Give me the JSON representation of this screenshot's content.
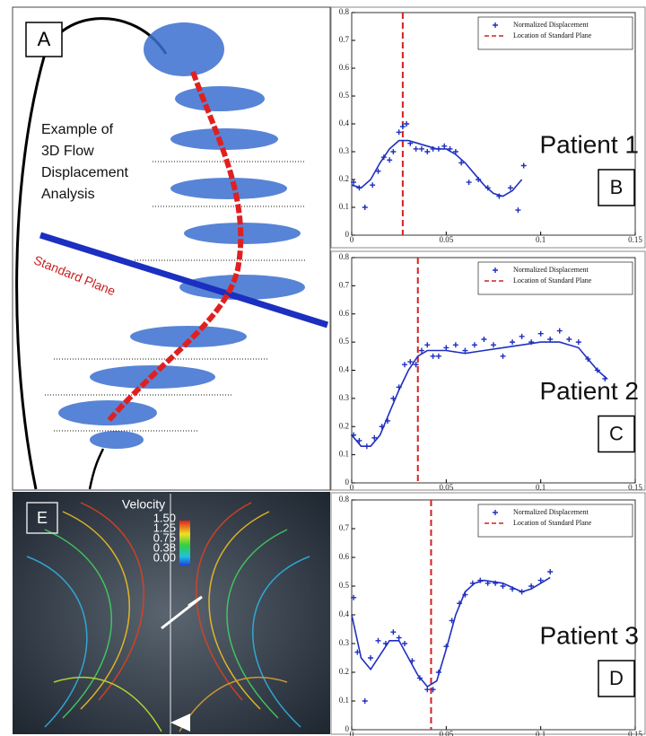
{
  "panels": {
    "A": {
      "label": "A",
      "caption": [
        "Example of",
        "3D Flow",
        "Displacement",
        "Analysis"
      ],
      "plane_label": "Standard Plane"
    },
    "E": {
      "label": "E",
      "colorbar_title": "Velocity",
      "colorbar_labels": [
        "1.50",
        "1.25",
        "0.75",
        "0.38",
        "0.00"
      ]
    }
  },
  "chart_data": [
    {
      "type": "scatter",
      "annotation": "Patient 1",
      "panel_label": "B",
      "xlim": [
        0,
        0.15
      ],
      "ylim": [
        0,
        0.8
      ],
      "xticks": [
        0,
        0.05,
        0.1,
        0.15
      ],
      "yticks": [
        0,
        0.1,
        0.2,
        0.3,
        0.4,
        0.5,
        0.6,
        0.7,
        0.8
      ],
      "series": [
        {
          "name": "Normalized Displacement",
          "color": "#1f2fbf",
          "x": [
            0.001,
            0.004,
            0.007,
            0.011,
            0.014,
            0.017,
            0.02,
            0.022,
            0.025,
            0.027,
            0.029,
            0.031,
            0.034,
            0.037,
            0.04,
            0.043,
            0.046,
            0.049,
            0.052,
            0.055,
            0.058,
            0.062,
            0.067,
            0.072,
            0.078,
            0.084,
            0.088,
            0.091
          ],
          "values": [
            0.19,
            0.17,
            0.1,
            0.18,
            0.23,
            0.28,
            0.27,
            0.3,
            0.37,
            0.39,
            0.4,
            0.33,
            0.31,
            0.31,
            0.3,
            0.31,
            0.31,
            0.32,
            0.31,
            0.3,
            0.26,
            0.19,
            0.2,
            0.17,
            0.14,
            0.17,
            0.09,
            0.25
          ]
        }
      ],
      "fit": {
        "color": "#1f2fbf",
        "x": [
          0,
          0.005,
          0.01,
          0.015,
          0.02,
          0.025,
          0.03,
          0.035,
          0.04,
          0.045,
          0.05,
          0.055,
          0.06,
          0.065,
          0.07,
          0.075,
          0.08,
          0.085,
          0.09
        ],
        "values": [
          0.18,
          0.17,
          0.2,
          0.26,
          0.31,
          0.34,
          0.34,
          0.33,
          0.32,
          0.31,
          0.31,
          0.29,
          0.26,
          0.22,
          0.18,
          0.15,
          0.14,
          0.16,
          0.2
        ]
      },
      "plane": {
        "name": "Location of Standard Plane",
        "color": "#d42020",
        "x": 0.027
      }
    },
    {
      "type": "scatter",
      "annotation": "Patient 2",
      "panel_label": "C",
      "xlim": [
        0,
        0.15
      ],
      "ylim": [
        0,
        0.8
      ],
      "xticks": [
        0,
        0.05,
        0.1,
        0.15
      ],
      "yticks": [
        0,
        0.1,
        0.2,
        0.3,
        0.4,
        0.5,
        0.6,
        0.7,
        0.8
      ],
      "series": [
        {
          "name": "Normalized Displacement",
          "color": "#1f2fbf",
          "x": [
            0.001,
            0.004,
            0.008,
            0.012,
            0.016,
            0.019,
            0.022,
            0.025,
            0.028,
            0.031,
            0.034,
            0.037,
            0.04,
            0.043,
            0.046,
            0.05,
            0.055,
            0.06,
            0.065,
            0.07,
            0.075,
            0.08,
            0.085,
            0.09,
            0.095,
            0.1,
            0.105,
            0.11,
            0.115,
            0.12,
            0.125,
            0.13,
            0.134
          ],
          "values": [
            0.17,
            0.15,
            0.13,
            0.16,
            0.2,
            0.22,
            0.3,
            0.34,
            0.42,
            0.43,
            0.42,
            0.47,
            0.49,
            0.45,
            0.45,
            0.48,
            0.49,
            0.47,
            0.49,
            0.51,
            0.49,
            0.45,
            0.5,
            0.52,
            0.5,
            0.53,
            0.51,
            0.54,
            0.51,
            0.5,
            0.44,
            0.4,
            0.37
          ]
        }
      ],
      "fit": {
        "color": "#1f2fbf",
        "x": [
          0,
          0.005,
          0.01,
          0.015,
          0.02,
          0.025,
          0.03,
          0.035,
          0.04,
          0.05,
          0.06,
          0.07,
          0.08,
          0.09,
          0.1,
          0.11,
          0.12,
          0.125,
          0.13,
          0.135
        ],
        "values": [
          0.17,
          0.13,
          0.13,
          0.17,
          0.25,
          0.33,
          0.4,
          0.45,
          0.47,
          0.47,
          0.46,
          0.47,
          0.48,
          0.49,
          0.5,
          0.5,
          0.48,
          0.44,
          0.4,
          0.37
        ]
      },
      "plane": {
        "name": "Location of Standard Plane",
        "color": "#d42020",
        "x": 0.035
      }
    },
    {
      "type": "scatter",
      "annotation": "Patient 3",
      "panel_label": "D",
      "xlim": [
        0,
        0.15
      ],
      "ylim": [
        0,
        0.8
      ],
      "xticks": [
        0,
        0.05,
        0.1,
        0.15
      ],
      "yticks": [
        0,
        0.1,
        0.2,
        0.3,
        0.4,
        0.5,
        0.6,
        0.7,
        0.8
      ],
      "series": [
        {
          "name": "Normalized Displacement",
          "color": "#1f2fbf",
          "x": [
            0.001,
            0.003,
            0.007,
            0.01,
            0.014,
            0.018,
            0.022,
            0.025,
            0.028,
            0.032,
            0.036,
            0.04,
            0.043,
            0.046,
            0.05,
            0.053,
            0.057,
            0.06,
            0.064,
            0.068,
            0.072,
            0.076,
            0.08,
            0.085,
            0.09,
            0.095,
            0.1,
            0.105
          ],
          "values": [
            0.46,
            0.27,
            0.1,
            0.25,
            0.31,
            0.3,
            0.34,
            0.32,
            0.3,
            0.24,
            0.18,
            0.14,
            0.14,
            0.2,
            0.29,
            0.38,
            0.44,
            0.47,
            0.51,
            0.52,
            0.51,
            0.51,
            0.5,
            0.49,
            0.48,
            0.5,
            0.52,
            0.55
          ]
        }
      ],
      "fit": {
        "color": "#1f2fbf",
        "x": [
          0,
          0.005,
          0.01,
          0.015,
          0.02,
          0.025,
          0.03,
          0.035,
          0.04,
          0.045,
          0.05,
          0.055,
          0.06,
          0.065,
          0.07,
          0.08,
          0.09,
          0.095,
          0.1,
          0.105
        ],
        "values": [
          0.4,
          0.25,
          0.21,
          0.26,
          0.31,
          0.31,
          0.25,
          0.19,
          0.15,
          0.17,
          0.28,
          0.4,
          0.48,
          0.51,
          0.52,
          0.51,
          0.48,
          0.49,
          0.51,
          0.53
        ]
      },
      "plane": {
        "name": "Location of Standard Plane",
        "color": "#d42020",
        "x": 0.042
      }
    }
  ]
}
